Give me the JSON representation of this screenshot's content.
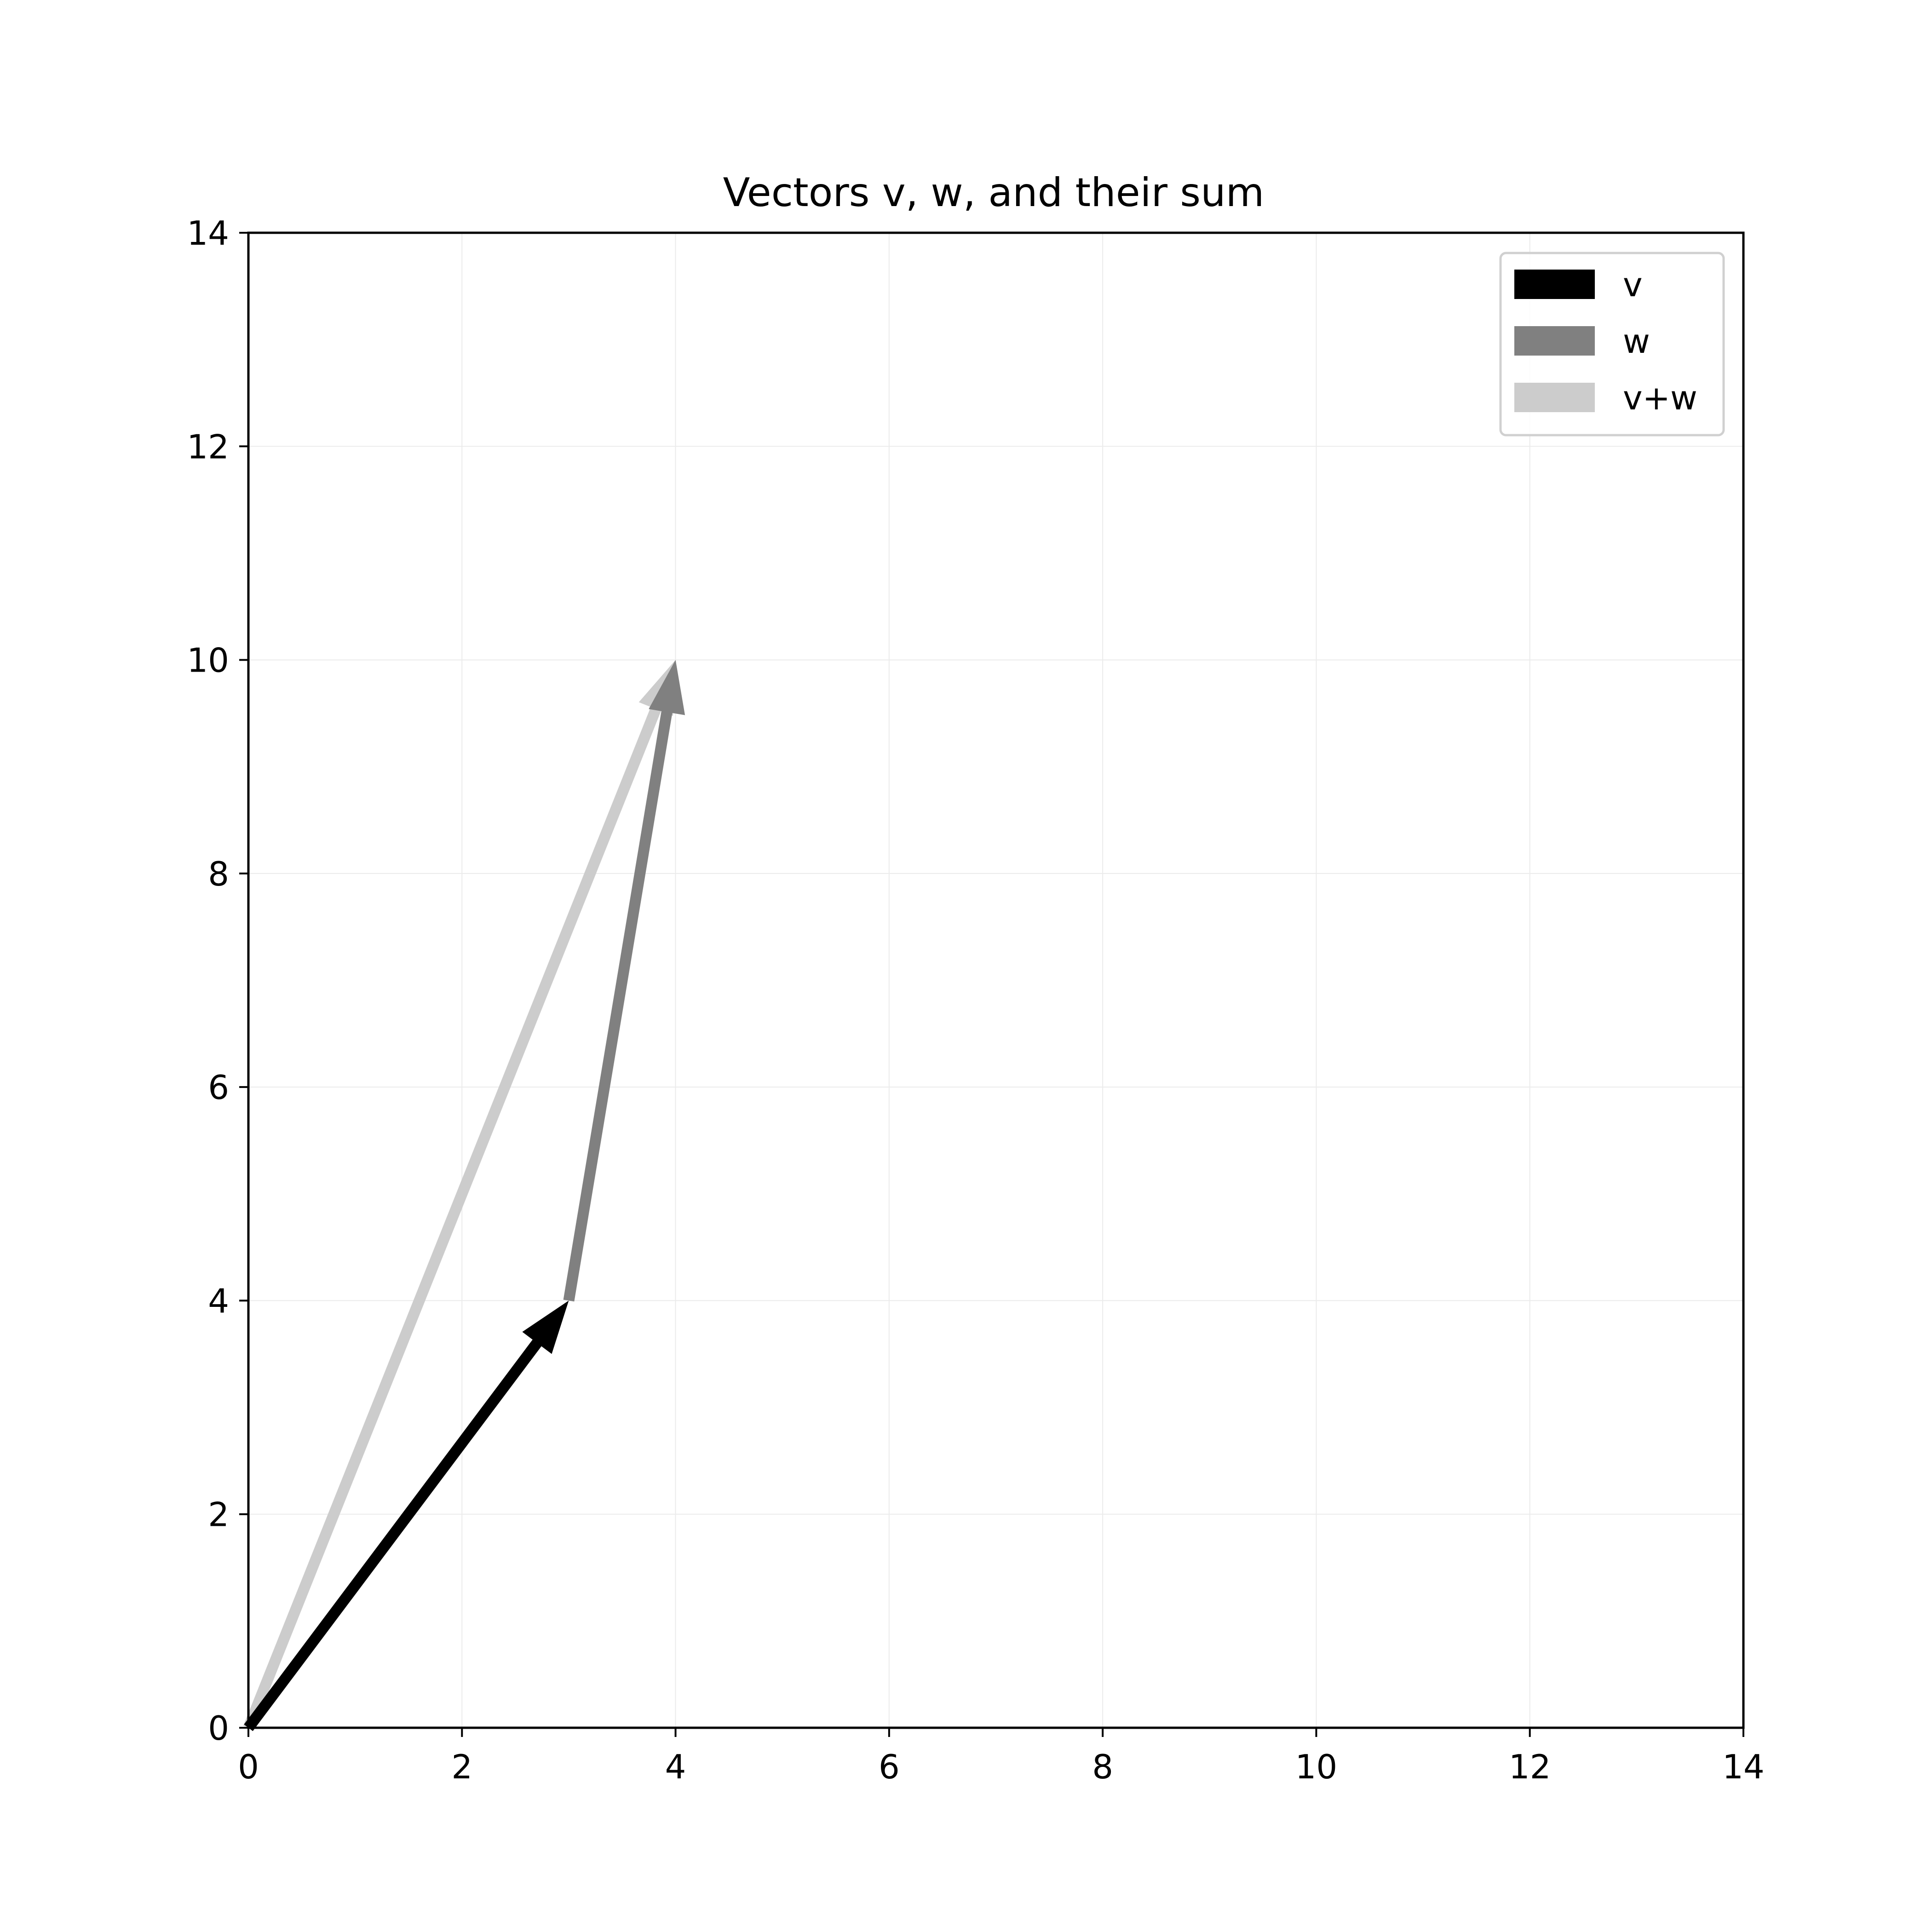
{
  "chart_data": {
    "type": "quiver",
    "title": "Vectors v, w, and their sum",
    "xlabel": "",
    "ylabel": "",
    "xlim": [
      0,
      14
    ],
    "ylim": [
      0,
      14
    ],
    "xticks": [
      0,
      2,
      4,
      6,
      8,
      10,
      12,
      14
    ],
    "yticks": [
      0,
      2,
      4,
      6,
      8,
      10,
      12,
      14
    ],
    "grid": true,
    "legend_position": "top-right",
    "series": [
      {
        "name": "v",
        "color": "#000000",
        "start": [
          0,
          0
        ],
        "end": [
          3,
          4
        ]
      },
      {
        "name": "w",
        "color": "#808080",
        "start": [
          3,
          4
        ],
        "end": [
          4,
          10
        ]
      },
      {
        "name": "v+w",
        "color": "#cccccc",
        "start": [
          0,
          0
        ],
        "end": [
          4,
          10
        ]
      }
    ]
  }
}
